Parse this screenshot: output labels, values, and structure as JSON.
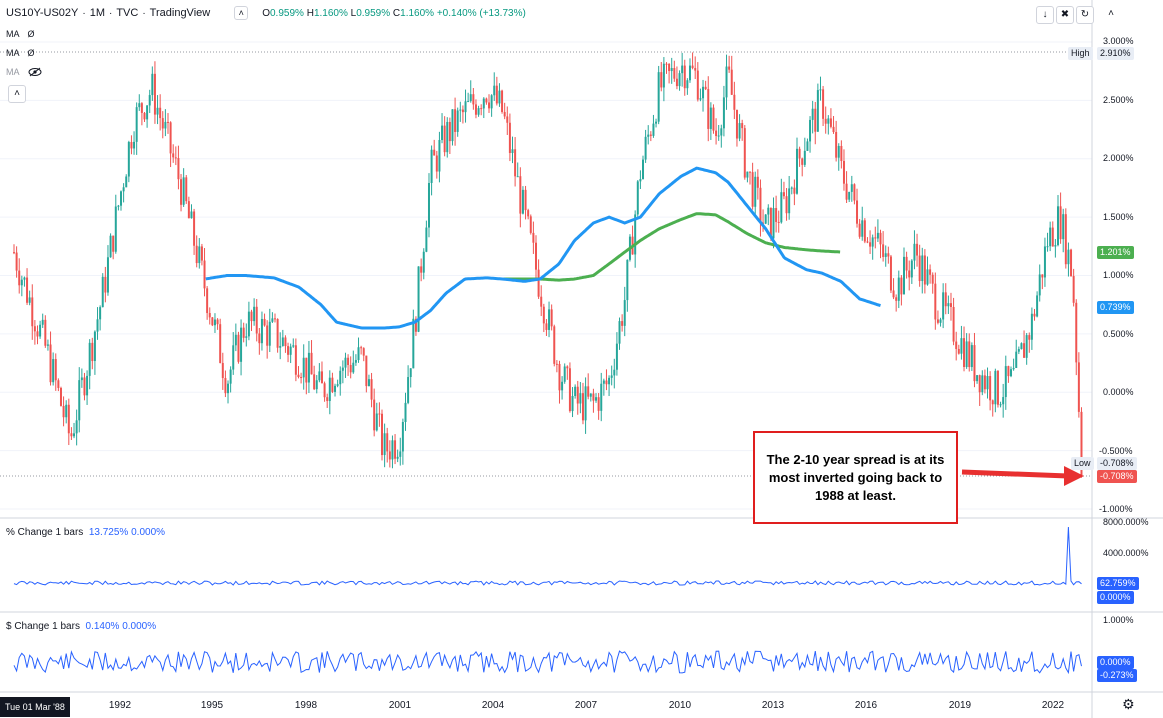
{
  "header": {
    "symbol": "US10Y-US02Y",
    "interval": "1M",
    "source": "TVC",
    "platform": "TradingView",
    "ohlc": {
      "open_key": "O",
      "open": "0.959%",
      "high_key": "H",
      "high": "1.160%",
      "low_key": "L",
      "low": "0.959%",
      "close_key": "C",
      "close": "1.160%",
      "change": "+0.140% (+13.73%)"
    },
    "ma_rows": [
      {
        "label": "MA",
        "value": "Ø"
      },
      {
        "label": "MA",
        "value": "Ø"
      },
      {
        "label": "MA",
        "value": ""
      }
    ],
    "collapse_symbol": "˄",
    "tool_down": "↓",
    "tool_x": "✖",
    "tool_box": "↻",
    "tool_up": "˄"
  },
  "price_axis": {
    "ticks": [
      "3.000%",
      "2.500%",
      "2.000%",
      "1.500%",
      "1.000%",
      "0.500%",
      "0.000%",
      "-0.500%",
      "-1.000%"
    ],
    "high_label": "High",
    "high_value": "2.910%",
    "low_label": "Low",
    "low_value": "-0.708%",
    "ma_green_value": "1.201%",
    "ma_blue_value": "0.739%",
    "last_value": "-0.708%"
  },
  "pane2": {
    "title": "% Change 1 bars",
    "v1": "13.725%",
    "v2": "0.000%",
    "ticks": [
      "8000.000%",
      "4000.000%"
    ],
    "tag1": "62.759%",
    "tag2": "0.000%"
  },
  "pane3": {
    "title": "$ Change 1 bars",
    "v1": "0.140%",
    "v2": "0.000%",
    "ticks": [
      "1.000%"
    ],
    "tag1": "0.000%",
    "tag2": "-0.273%"
  },
  "annotation": "The 2-10 year spread is at its most inverted going back to 1988 at least.",
  "date_tag": "Tue 01 Mar '88",
  "x_axis": [
    "1992",
    "1995",
    "1998",
    "2001",
    "2004",
    "2007",
    "2010",
    "2013",
    "2016",
    "2019",
    "2022"
  ],
  "colors": {
    "up": "#26a69a",
    "down": "#ef5350",
    "ma_blue": "#2196f3",
    "ma_green": "#4caf50",
    "indicator": "#2962ff",
    "annotation_border": "#e01e1e",
    "arrow": "#e83030"
  },
  "chart_data": {
    "type": "line",
    "title": "US10Y-US02Y · 1M · TVC",
    "xlabel": "",
    "ylabel": "",
    "ylim": [
      -1.0,
      3.0
    ],
    "x": [
      1988.2,
      1989.3,
      1990.0,
      1991.0,
      1992.0,
      1992.6,
      1993.5,
      1994.3,
      1995.0,
      1995.6,
      1996.5,
      1997.3,
      1998.0,
      1998.5,
      1999.3,
      2000.0,
      2000.5,
      2001.0,
      2001.5,
      2002.0,
      2002.6,
      2003.3,
      2003.8,
      2004.5,
      2005.0,
      2005.6,
      2006.1,
      2006.7,
      2007.2,
      2007.7,
      2008.2,
      2008.8,
      2009.5,
      2010.0,
      2010.6,
      2011.0,
      2011.6,
      2012.2,
      2012.8,
      2013.5,
      2014.0,
      2014.6,
      2015.2,
      2015.9,
      2016.4,
      2017.0,
      2017.6,
      2018.3,
      2018.9,
      2019.6,
      2020.1,
      2020.7,
      2021.2,
      2021.6,
      2022.0,
      2022.3
    ],
    "series": [
      {
        "name": "US10Y-US02Y",
        "values": [
          1.2,
          0.3,
          -0.4,
          0.8,
          2.3,
          2.6,
          1.8,
          0.9,
          0.1,
          0.6,
          0.5,
          0.3,
          0.0,
          0.2,
          0.3,
          -0.5,
          -0.4,
          0.6,
          1.9,
          2.2,
          2.4,
          2.6,
          2.4,
          1.5,
          0.9,
          0.2,
          -0.1,
          -0.1,
          0.1,
          0.8,
          1.9,
          2.6,
          2.8,
          2.7,
          2.2,
          2.7,
          1.9,
          1.4,
          1.6,
          2.2,
          2.5,
          1.9,
          1.5,
          1.2,
          0.9,
          1.2,
          0.8,
          0.5,
          0.2,
          0.0,
          0.1,
          0.6,
          1.3,
          1.5,
          1.0,
          -0.708
        ]
      },
      {
        "name": "MA (blue)",
        "values": [
          null,
          null,
          null,
          null,
          null,
          null,
          null,
          0.97,
          1.0,
          1.0,
          0.98,
          0.9,
          0.75,
          0.6,
          0.55,
          0.55,
          0.56,
          0.6,
          0.7,
          0.85,
          0.97,
          0.98,
          0.97,
          0.95,
          0.97,
          1.1,
          1.3,
          1.45,
          1.5,
          1.45,
          1.5,
          1.7,
          1.85,
          1.92,
          1.88,
          1.8,
          1.6,
          1.4,
          1.15,
          1.05,
          1.02,
          0.95,
          0.8,
          0.739,
          null,
          null,
          null,
          null,
          null,
          null,
          null,
          null,
          null,
          null,
          null,
          null
        ]
      },
      {
        "name": "MA (green)",
        "values": [
          null,
          null,
          null,
          null,
          null,
          null,
          null,
          null,
          null,
          null,
          null,
          null,
          null,
          null,
          null,
          null,
          null,
          null,
          null,
          null,
          null,
          null,
          0.97,
          0.97,
          0.97,
          0.96,
          0.97,
          1.0,
          1.1,
          1.2,
          1.3,
          1.4,
          1.48,
          1.53,
          1.52,
          1.46,
          1.36,
          1.28,
          1.24,
          1.22,
          1.21,
          1.201,
          null,
          null,
          null,
          null,
          null,
          null,
          null,
          null,
          null,
          null,
          null,
          null,
          null,
          null
        ]
      }
    ]
  }
}
